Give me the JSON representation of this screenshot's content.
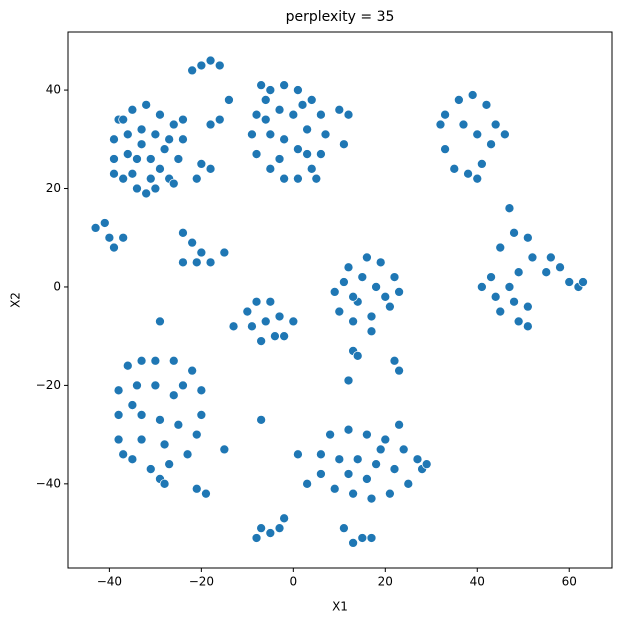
{
  "chart_data": {
    "type": "scatter",
    "title": "perplexity = 35",
    "x_label": "X1",
    "y_label": "X2",
    "color": "#1f77b4",
    "xlim": [
      -49,
      69.3
    ],
    "ylim": [
      -57.1,
      51.8
    ],
    "xticks": [
      {
        "value": -40,
        "label": "−40"
      },
      {
        "value": -20,
        "label": "−20"
      },
      0,
      20,
      40,
      60
    ],
    "yticks": [
      {
        "value": -40,
        "label": "−40"
      },
      {
        "value": -20,
        "label": "−20"
      },
      0,
      20,
      40
    ],
    "x": [
      -38,
      -35,
      -32,
      -29,
      -26,
      -24,
      -25,
      -27,
      -30,
      -34,
      -37,
      -39,
      -39,
      -36,
      -33,
      -30,
      -28,
      -31,
      -34,
      -36,
      -33,
      -29,
      -35,
      -31,
      -37,
      -27,
      -24,
      -32,
      -39,
      -5,
      -2,
      1,
      4,
      6,
      7,
      6,
      4,
      1,
      -2,
      -5,
      -8,
      -9,
      -8,
      -6,
      -3,
      0,
      3,
      -2,
      -5,
      1,
      -3,
      3,
      -6,
      2,
      5,
      -7,
      33,
      36,
      39,
      42,
      44,
      43,
      41,
      38,
      35,
      33,
      32,
      37,
      40,
      46,
      40,
      -36,
      -33,
      -30,
      -26,
      -22,
      -20,
      -20,
      -21,
      -23,
      -27,
      -31,
      -35,
      -38,
      -38,
      -38,
      -34,
      -30,
      -26,
      -33,
      -29,
      -25,
      -33,
      -28,
      -35,
      -24,
      -29,
      8,
      12,
      16,
      20,
      24,
      27,
      28,
      25,
      21,
      17,
      13,
      9,
      6,
      6,
      10,
      14,
      18,
      22,
      12,
      16,
      19,
      23,
      3,
      1,
      12,
      16,
      19,
      22,
      23,
      21,
      17,
      13,
      10,
      9,
      11,
      15,
      18,
      14,
      20,
      17,
      13,
      45,
      48,
      51,
      52,
      49,
      47,
      44,
      45,
      49,
      51,
      43,
      41,
      56,
      58,
      60,
      62,
      63,
      55,
      51,
      48,
      -8,
      -5,
      -3,
      -4,
      -7,
      -9,
      -6,
      -2,
      0,
      -10,
      -43,
      -41,
      -40,
      -39,
      -37,
      -24,
      -22,
      -20,
      -18,
      -21,
      -24,
      -15,
      -20,
      -18,
      -16,
      -22,
      -7,
      -5,
      -3,
      -8,
      -2,
      11,
      13,
      15,
      17,
      -21,
      -19,
      -20,
      -21,
      -18,
      -18,
      -16,
      10,
      12,
      11,
      -15,
      -13,
      -7,
      22,
      23,
      13,
      14,
      12,
      -29,
      47,
      -26,
      -28,
      -14,
      -37,
      29
    ],
    "y": [
      34,
      36,
      37,
      35,
      33,
      30,
      26,
      22,
      20,
      20,
      22,
      26,
      30,
      31,
      32,
      31,
      28,
      26,
      26,
      27,
      29,
      24,
      23,
      22,
      34,
      30,
      34,
      19,
      23,
      40,
      41,
      40,
      38,
      35,
      31,
      27,
      24,
      22,
      22,
      24,
      27,
      31,
      35,
      38,
      36,
      35,
      32,
      30,
      31,
      28,
      26,
      27,
      34,
      37,
      22,
      41,
      35,
      38,
      39,
      37,
      33,
      29,
      25,
      23,
      24,
      28,
      33,
      33,
      31,
      31,
      22,
      -16,
      -15,
      -15,
      -15,
      -17,
      -21,
      -26,
      -30,
      -34,
      -36,
      -37,
      -35,
      -31,
      -26,
      -21,
      -20,
      -20,
      -22,
      -26,
      -27,
      -28,
      -31,
      -32,
      -24,
      -20,
      -39,
      -30,
      -29,
      -30,
      -31,
      -33,
      -35,
      -37,
      -40,
      -42,
      -43,
      -42,
      -41,
      -38,
      -34,
      -35,
      -35,
      -36,
      -37,
      -38,
      -39,
      -33,
      -28,
      -40,
      -34,
      4,
      6,
      5,
      2,
      -1,
      -4,
      -6,
      -7,
      -5,
      -1,
      1,
      2,
      0,
      -3,
      -2,
      -9,
      -2,
      8,
      11,
      10,
      6,
      3,
      0,
      -2,
      -5,
      -7,
      -4,
      2,
      0,
      6,
      4,
      1,
      0,
      1,
      3,
      -8,
      -3,
      -3,
      -3,
      -6,
      -10,
      -11,
      -8,
      -7,
      -10,
      -7,
      -5,
      12,
      13,
      10,
      8,
      10,
      11,
      9,
      7,
      5,
      5,
      5,
      7,
      45,
      46,
      45,
      44,
      -49,
      -50,
      -49,
      -51,
      -47,
      -49,
      -52,
      -51,
      -51,
      -41,
      -42,
      25,
      22,
      24,
      33,
      34,
      36,
      35,
      29,
      -33,
      -8,
      -27,
      -15,
      -17,
      -13,
      -14,
      -19,
      -7,
      16,
      21,
      -40,
      38,
      -34,
      -36
    ]
  }
}
